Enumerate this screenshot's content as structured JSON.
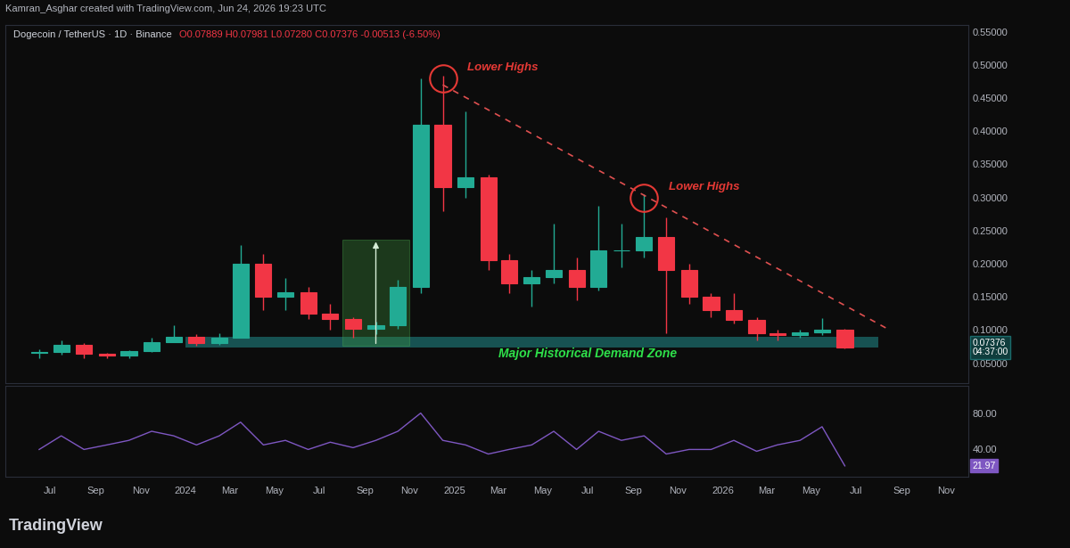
{
  "header": "Kamran_Asghar created with TradingView.com, Jun 24, 2026 19:23 UTC",
  "footer": "TradingView",
  "chart_data": [
    {
      "type": "candlestick",
      "title": "Dogecoin / TetherUS · 1D · Binance",
      "subtitle": "O0.07889 H0.07981 L0.07280 C0.07376 -0.00513 (-6.50%)",
      "x": [
        "2023-06",
        "2023-07",
        "2023-08",
        "2023-09",
        "2023-10",
        "2023-11",
        "2023-12",
        "2024-01",
        "2024-02",
        "2024-03",
        "2024-04",
        "2024-05",
        "2024-06",
        "2024-07",
        "2024-08",
        "2024-09",
        "2024-10",
        "2024-11",
        "2024-12",
        "2025-01",
        "2025-02",
        "2025-03",
        "2025-04",
        "2025-05",
        "2025-06",
        "2025-07",
        "2025-08",
        "2025-09",
        "2025-10",
        "2025-11",
        "2025-12",
        "2026-01",
        "2026-02",
        "2026-03",
        "2026-04",
        "2026-05",
        "2026-06"
      ],
      "open": [
        0.066,
        0.067,
        0.077,
        0.064,
        0.061,
        0.068,
        0.082,
        0.09,
        0.08,
        0.089,
        0.2,
        0.15,
        0.157,
        0.125,
        0.117,
        0.102,
        0.107,
        0.165,
        0.41,
        0.316,
        0.33,
        0.205,
        0.17,
        0.18,
        0.19,
        0.165,
        0.22,
        0.22,
        0.24,
        0.19,
        0.15,
        0.13,
        0.115,
        0.095,
        0.092,
        0.097,
        0.1
      ],
      "high": [
        0.071,
        0.084,
        0.08,
        0.065,
        0.07,
        0.088,
        0.107,
        0.094,
        0.095,
        0.228,
        0.215,
        0.178,
        0.165,
        0.14,
        0.12,
        0.112,
        0.176,
        0.48,
        0.484,
        0.43,
        0.335,
        0.215,
        0.19,
        0.26,
        0.21,
        0.288,
        0.26,
        0.305,
        0.27,
        0.2,
        0.155,
        0.155,
        0.12,
        0.1,
        0.1,
        0.118,
        0.102
      ],
      "low": [
        0.058,
        0.063,
        0.057,
        0.058,
        0.058,
        0.067,
        0.082,
        0.076,
        0.077,
        0.088,
        0.13,
        0.13,
        0.117,
        0.101,
        0.089,
        0.094,
        0.102,
        0.155,
        0.28,
        0.3,
        0.19,
        0.155,
        0.135,
        0.17,
        0.145,
        0.16,
        0.195,
        0.21,
        0.095,
        0.14,
        0.12,
        0.11,
        0.085,
        0.085,
        0.088,
        0.093,
        0.0728
      ],
      "close": [
        0.067,
        0.077,
        0.064,
        0.061,
        0.068,
        0.082,
        0.09,
        0.08,
        0.089,
        0.2,
        0.15,
        0.157,
        0.125,
        0.117,
        0.102,
        0.107,
        0.165,
        0.41,
        0.316,
        0.33,
        0.205,
        0.17,
        0.18,
        0.19,
        0.165,
        0.22,
        0.22,
        0.24,
        0.19,
        0.15,
        0.13,
        0.115,
        0.095,
        0.092,
        0.097,
        0.1,
        0.07376
      ],
      "xlim": [
        "2023-05",
        "2026-12"
      ],
      "ylim": [
        0.02,
        0.56
      ],
      "yticks": [
        {
          "value": 0.05,
          "label": "0.05000"
        },
        {
          "value": 0.1,
          "label": "0.10000"
        },
        {
          "value": 0.15,
          "label": "0.15000"
        },
        {
          "value": 0.2,
          "label": "0.20000"
        },
        {
          "value": 0.25,
          "label": "0.25000"
        },
        {
          "value": 0.3,
          "label": "0.30000"
        },
        {
          "value": 0.35,
          "label": "0.35000"
        },
        {
          "value": 0.4,
          "label": "0.40000"
        },
        {
          "value": 0.45,
          "label": "0.45000"
        },
        {
          "value": 0.5,
          "label": "0.50000"
        },
        {
          "value": 0.55,
          "label": "0.55000"
        }
      ],
      "tick_labels": "y",
      "grid": false,
      "last_price": {
        "value": 0.07376,
        "label": "0.07376",
        "countdown": "04:37:00"
      },
      "trendline": {
        "x": [
          "2024-12",
          "2026-08"
        ],
        "y": [
          0.47,
          0.1
        ]
      },
      "annotations": [
        {
          "text": "Lower Highs",
          "x": "2024-12",
          "y": 0.48
        },
        {
          "text": "Lower Highs",
          "x": "2025-09",
          "y": 0.3
        }
      ],
      "demand_zone": {
        "text": "Major Historical Demand Zone",
        "start": "2024-01",
        "end": "2026-08",
        "low": 0.0733,
        "high": 0.0893
      },
      "measure_box": {
        "start": "2024-08",
        "end": "2024-11",
        "low": 0.076,
        "high": 0.237
      }
    },
    {
      "type": "line",
      "x": [
        "2023-06",
        "2023-07",
        "2023-08",
        "2023-09",
        "2023-10",
        "2023-11",
        "2023-12",
        "2024-01",
        "2024-02",
        "2024-03",
        "2024-04",
        "2024-05",
        "2024-06",
        "2024-07",
        "2024-08",
        "2024-09",
        "2024-10",
        "2024-11",
        "2024-12",
        "2025-01",
        "2025-02",
        "2025-03",
        "2025-04",
        "2025-05",
        "2025-06",
        "2025-07",
        "2025-08",
        "2025-09",
        "2025-10",
        "2025-11",
        "2025-12",
        "2026-01",
        "2026-02",
        "2026-03",
        "2026-04",
        "2026-05",
        "2026-06"
      ],
      "values": [
        40,
        55,
        40,
        45,
        50,
        60,
        55,
        45,
        55,
        70,
        45,
        50,
        40,
        48,
        42,
        50,
        60,
        80,
        50,
        45,
        35,
        40,
        45,
        60,
        40,
        60,
        50,
        55,
        35,
        40,
        40,
        50,
        38,
        45,
        50,
        65,
        21.97
      ],
      "color": "#7e57c2",
      "xlim": [
        "2023-05",
        "2026-12"
      ],
      "ylim": [
        10,
        110
      ],
      "yticks": [
        {
          "value": 40,
          "label": "40.00"
        },
        {
          "value": 80,
          "label": "80.00"
        }
      ],
      "xticks": [
        {
          "value": "2023-07",
          "label": "Jul"
        },
        {
          "value": "2023-09",
          "label": "Sep"
        },
        {
          "value": "2023-11",
          "label": "Nov"
        },
        {
          "value": "2024-01",
          "label": "2024"
        },
        {
          "value": "2024-03",
          "label": "Mar"
        },
        {
          "value": "2024-05",
          "label": "May"
        },
        {
          "value": "2024-07",
          "label": "Jul"
        },
        {
          "value": "2024-09",
          "label": "Sep"
        },
        {
          "value": "2024-11",
          "label": "Nov"
        },
        {
          "value": "2025-01",
          "label": "2025"
        },
        {
          "value": "2025-03",
          "label": "Mar"
        },
        {
          "value": "2025-05",
          "label": "May"
        },
        {
          "value": "2025-07",
          "label": "Jul"
        },
        {
          "value": "2025-09",
          "label": "Sep"
        },
        {
          "value": "2025-11",
          "label": "Nov"
        },
        {
          "value": "2026-01",
          "label": "2026"
        },
        {
          "value": "2026-03",
          "label": "Mar"
        },
        {
          "value": "2026-05",
          "label": "May"
        },
        {
          "value": "2026-07",
          "label": "Jul"
        },
        {
          "value": "2026-09",
          "label": "Sep"
        },
        {
          "value": "2026-11",
          "label": "Nov"
        }
      ],
      "grid": false,
      "last_value": {
        "value": 21.97,
        "label": "21.97"
      }
    }
  ]
}
